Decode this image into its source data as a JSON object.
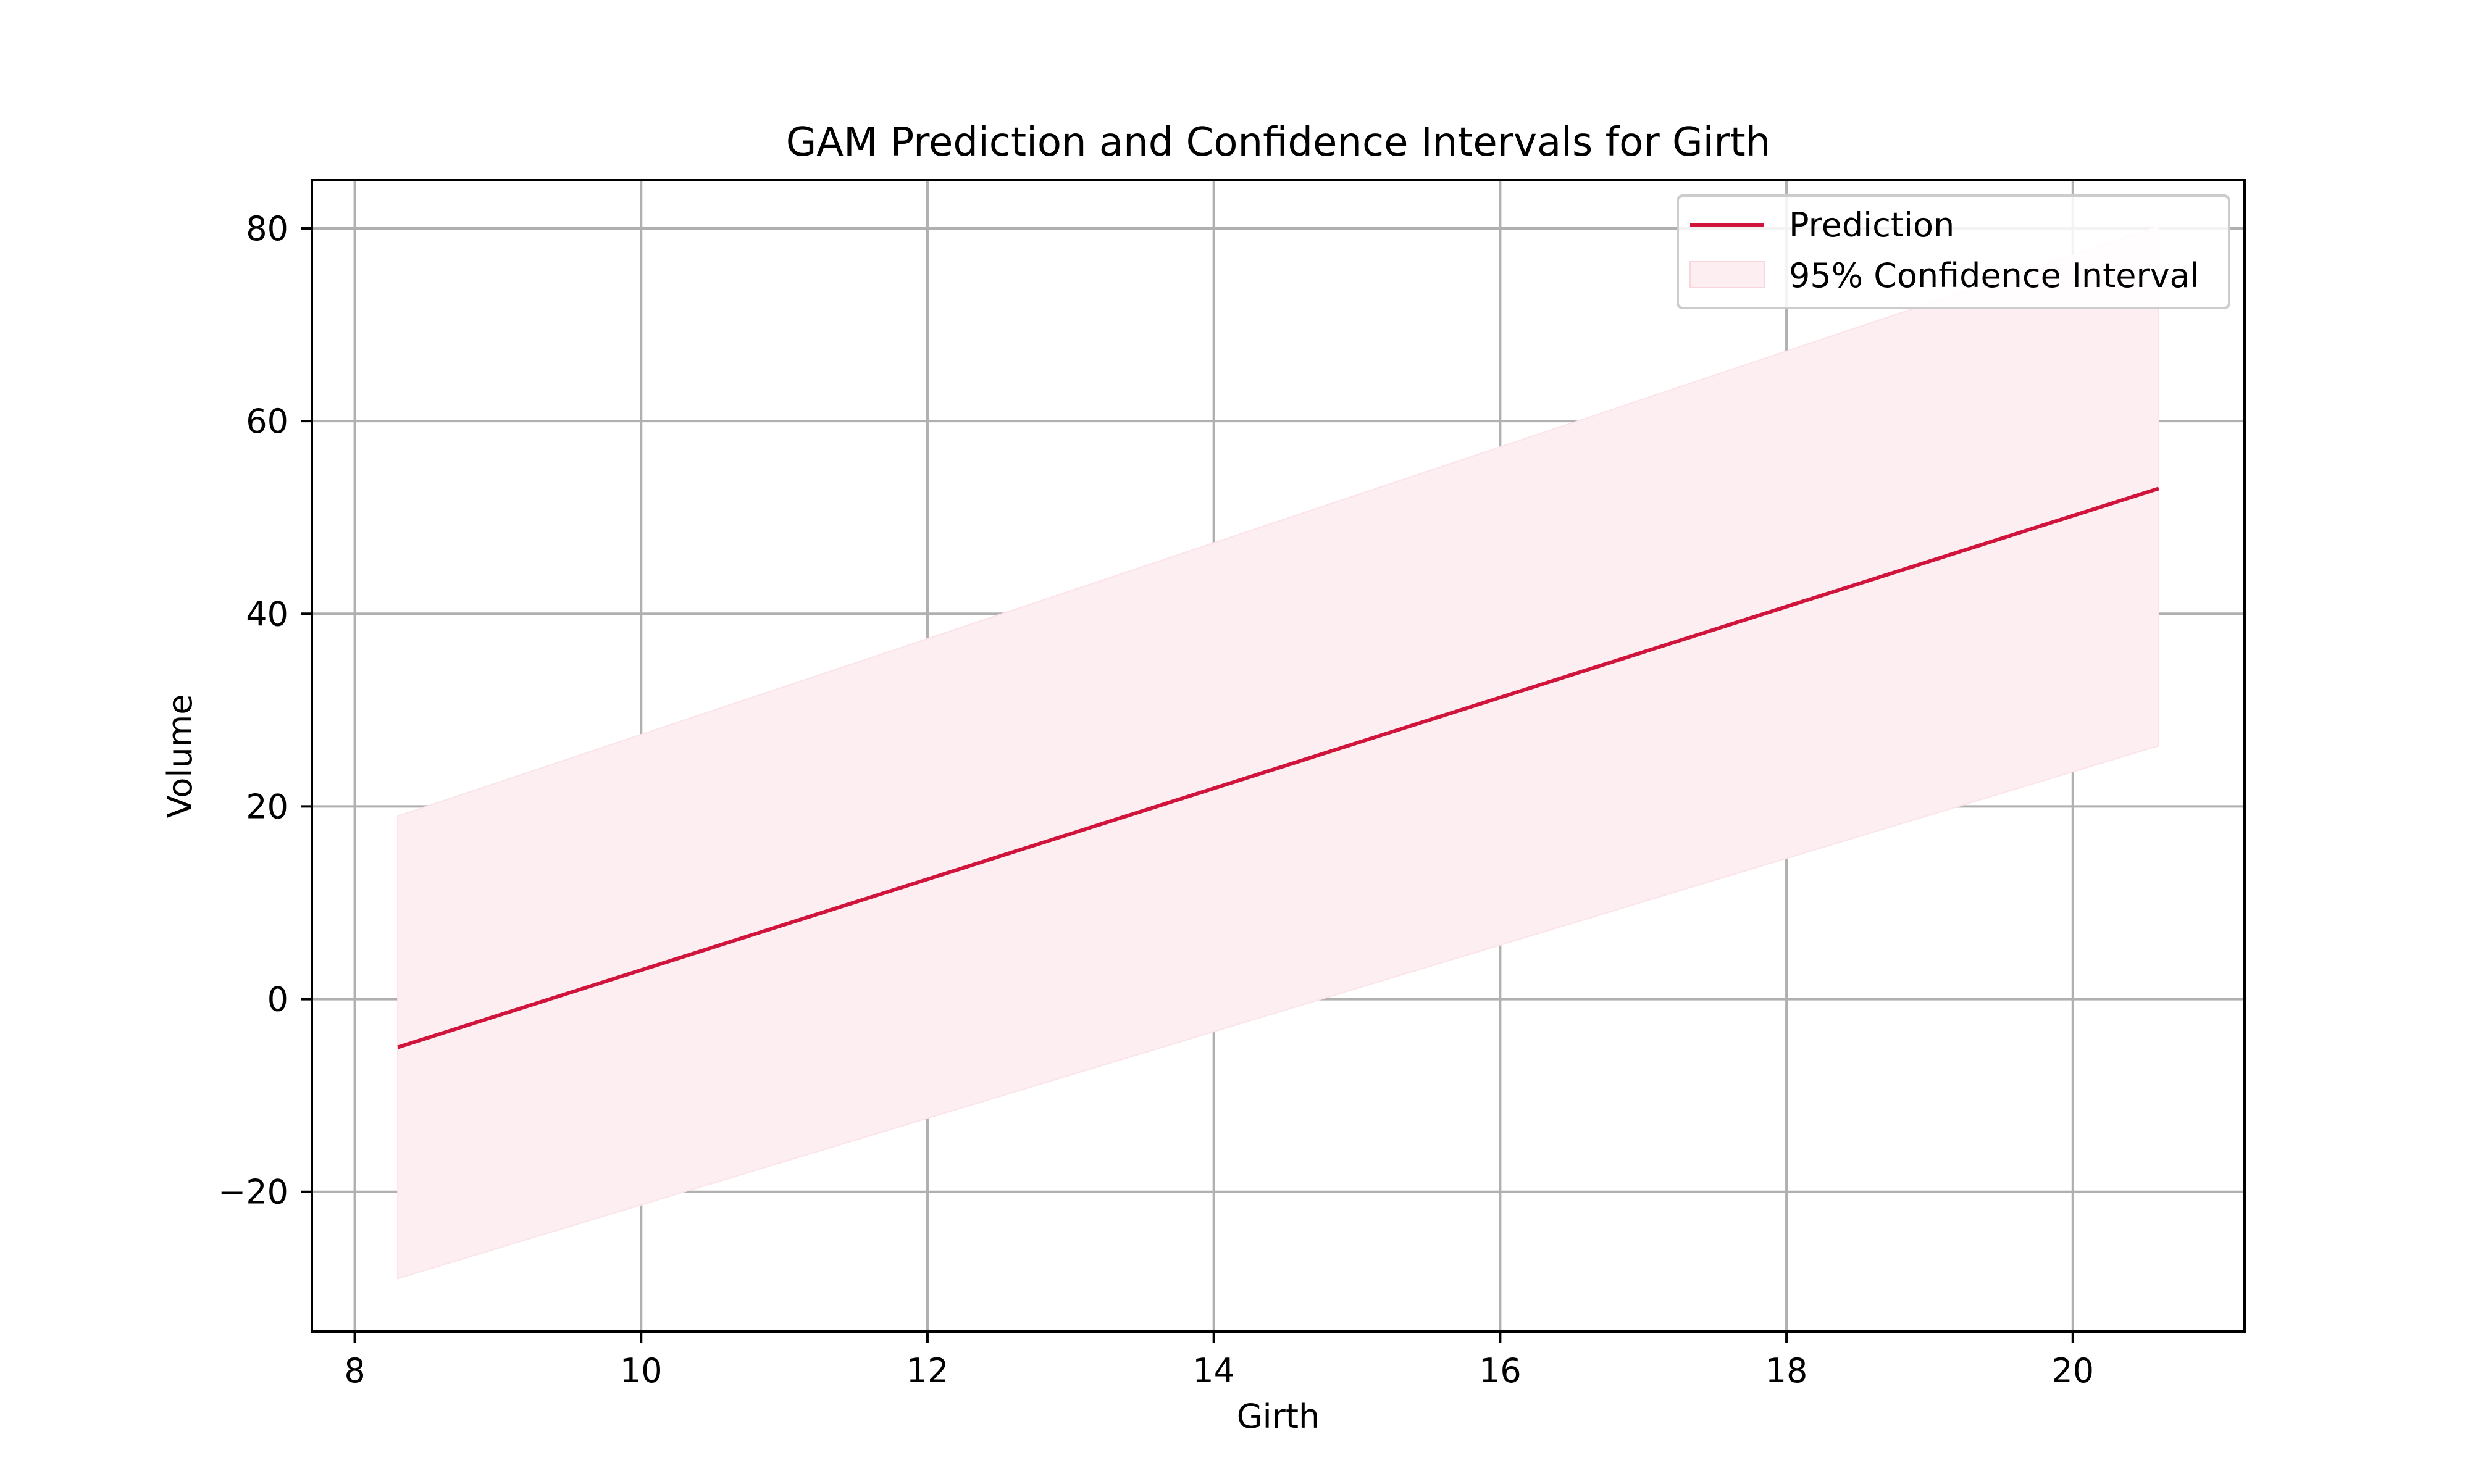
{
  "chart_data": {
    "type": "line",
    "title": "GAM Prediction and Confidence Intervals for Girth",
    "xlabel": "Girth",
    "ylabel": "Volume",
    "xlim": [
      7.7,
      21.2
    ],
    "ylim": [
      -34.5,
      85
    ],
    "x_ticks": [
      8,
      10,
      12,
      14,
      16,
      18,
      20
    ],
    "x_tick_labels": [
      "8",
      "10",
      "12",
      "14",
      "16",
      "18",
      "20"
    ],
    "y_ticks": [
      -20,
      0,
      20,
      40,
      60,
      80
    ],
    "y_tick_labels": [
      "−20",
      "0",
      "20",
      "40",
      "60",
      "80"
    ],
    "grid": true,
    "legend": {
      "position": "top-right",
      "entries": [
        "Prediction",
        "95% Confidence Interval"
      ]
    },
    "colors": {
      "line": "#d0143c",
      "band": "#fdeef1",
      "grid": "#b0b0b0",
      "axes": "#000000"
    },
    "series": [
      {
        "name": "Prediction",
        "kind": "line",
        "x": [
          8.3,
          20.6
        ],
        "y": [
          -5.0,
          53.0
        ]
      },
      {
        "name": "95% Confidence Interval",
        "kind": "band",
        "x": [
          8.3,
          20.6
        ],
        "lower": [
          -29.0,
          26.3
        ],
        "upper": [
          19.0,
          80.2
        ]
      }
    ]
  }
}
